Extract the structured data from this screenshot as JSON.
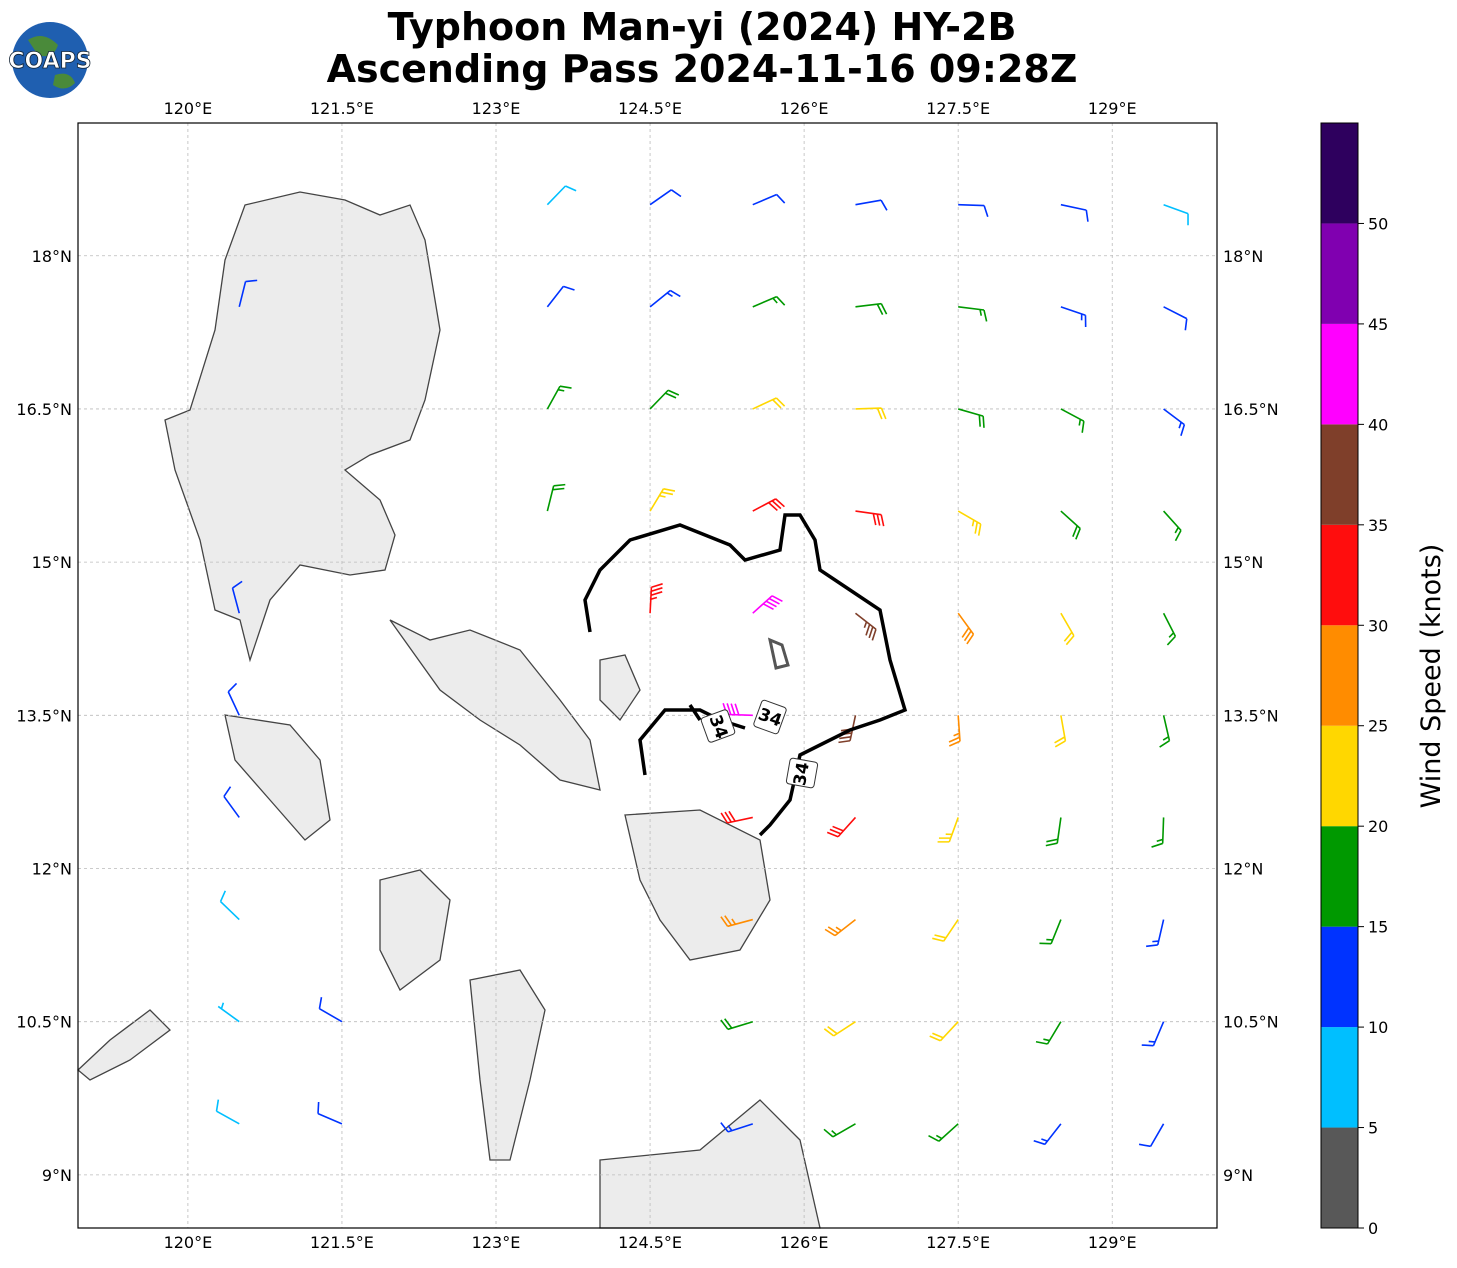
{
  "chart_data": {
    "type": "wind-barb-map",
    "title_lines": [
      "Typhoon Man-yi (2024) HY-2B",
      "Ascending Pass 2024-11-16 09:28Z"
    ],
    "logo": "COAPS",
    "xlim": [
      118.93,
      130.02
    ],
    "ylim": [
      8.48,
      19.3
    ],
    "xticks": [
      {
        "value": 120,
        "label": "120°E"
      },
      {
        "value": 121.5,
        "label": "121.5°E"
      },
      {
        "value": 123,
        "label": "123°E"
      },
      {
        "value": 124.5,
        "label": "124.5°E"
      },
      {
        "value": 126,
        "label": "126°E"
      },
      {
        "value": 127.5,
        "label": "127.5°E"
      },
      {
        "value": 129,
        "label": "129°E"
      }
    ],
    "yticks": [
      {
        "value": 9,
        "label": "9°N"
      },
      {
        "value": 10.5,
        "label": "10.5°N"
      },
      {
        "value": 12,
        "label": "12°N"
      },
      {
        "value": 13.5,
        "label": "13.5°N"
      },
      {
        "value": 15,
        "label": "15°N"
      },
      {
        "value": 16.5,
        "label": "16.5°N"
      },
      {
        "value": 18,
        "label": "18°N"
      }
    ],
    "grid": true,
    "contour_labels": [
      "34",
      "34",
      "34"
    ],
    "barbs": {
      "lons": [
        120.5,
        121.5,
        122.5,
        123.5,
        124.5,
        125.5,
        126.5,
        127.5,
        128.5,
        129.5
      ],
      "lats": [
        18.5,
        17.5,
        16.5,
        15.5,
        14.5,
        13.5,
        12.5,
        11.5,
        10.5,
        9.5
      ],
      "speed": [
        [
          null,
          null,
          null,
          8,
          10,
          12,
          12,
          12,
          10,
          8
        ],
        [
          12,
          null,
          null,
          12,
          14,
          17,
          18,
          16,
          14,
          12
        ],
        [
          null,
          null,
          null,
          16,
          19,
          22,
          22,
          19,
          16,
          14
        ],
        [
          null,
          null,
          null,
          18,
          24,
          31,
          30,
          24,
          19,
          15
        ],
        [
          12,
          null,
          null,
          null,
          33,
          42,
          36,
          28,
          20,
          16
        ],
        [
          12,
          null,
          null,
          null,
          null,
          40,
          38,
          27,
          20,
          15
        ],
        [
          11,
          null,
          null,
          null,
          null,
          31,
          30,
          24,
          19,
          15
        ],
        [
          8,
          null,
          null,
          null,
          null,
          26,
          26,
          22,
          17,
          14
        ],
        [
          7,
          12,
          null,
          null,
          null,
          18,
          21,
          21,
          16,
          13
        ],
        [
          8,
          12,
          null,
          null,
          null,
          14,
          17,
          17,
          14,
          10
        ]
      ],
      "direction": [
        [
          null,
          null,
          null,
          44,
          55,
          67,
          80,
          92,
          102,
          110
        ],
        [
          14,
          null,
          null,
          38,
          51,
          67,
          83,
          97,
          109,
          117
        ],
        [
          null,
          null,
          null,
          29,
          44,
          65,
          88,
          106,
          118,
          127
        ],
        [
          null,
          null,
          null,
          14,
          31,
          62,
          98,
          120,
          132,
          138
        ],
        [
          345,
          null,
          null,
          null,
          3,
          48,
          128,
          144,
          150,
          153
        ],
        [
          335,
          null,
          null,
          null,
          null,
          272,
          192,
          176,
          170,
          167
        ],
        [
          324,
          null,
          null,
          null,
          null,
          258,
          222,
          200,
          188,
          182
        ],
        [
          314,
          null,
          null,
          null,
          null,
          255,
          232,
          214,
          202,
          193
        ],
        [
          306,
          300,
          null,
          null,
          null,
          253,
          237,
          223,
          211,
          203
        ],
        [
          299,
          293,
          null,
          null,
          null,
          252,
          240,
          228,
          218,
          210
        ]
      ]
    },
    "colorbar": {
      "label": "Wind Speed (knots)",
      "levels": [
        0,
        5,
        10,
        15,
        20,
        25,
        30,
        35,
        40,
        45,
        50,
        55
      ],
      "colors": [
        "#585858",
        "#00bfff",
        "#0033ff",
        "#009900",
        "#ffd700",
        "#ff8c00",
        "#ff0d0d",
        "#7f3f2a",
        "#ff00ff",
        "#8000b0",
        "#2e005e"
      ],
      "ticks": [
        0,
        5,
        10,
        15,
        20,
        25,
        30,
        35,
        40,
        45,
        50
      ]
    }
  }
}
